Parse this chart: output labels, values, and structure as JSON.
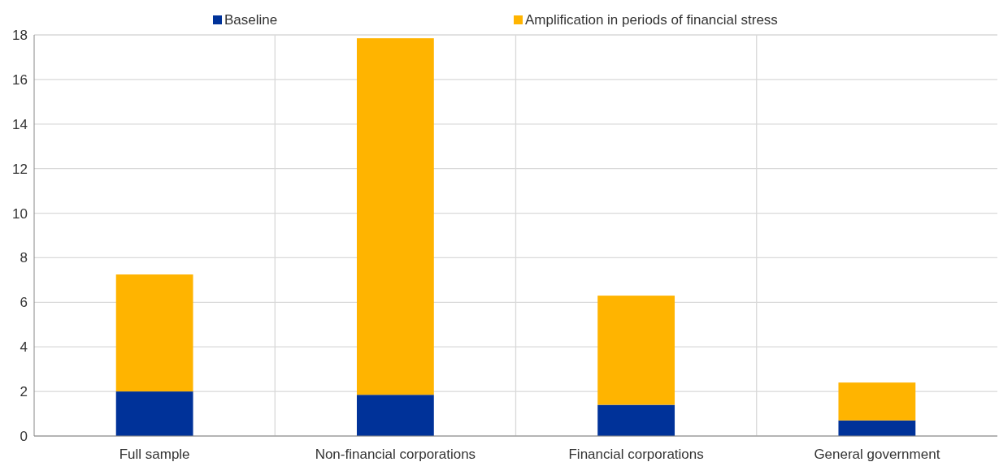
{
  "chart_data": {
    "type": "bar",
    "stacked": true,
    "categories": [
      "Full sample",
      "Non-financial corporations",
      "Financial corporations",
      "General government"
    ],
    "series": [
      {
        "name": "Baseline",
        "color": "#003299",
        "values": [
          2.0,
          1.85,
          1.4,
          0.7
        ]
      },
      {
        "name": "Amplification in periods of financial stress",
        "color": "#ffb400",
        "values": [
          5.25,
          16.0,
          4.9,
          1.7
        ]
      }
    ],
    "ylim": [
      0,
      18
    ],
    "yticks": [
      0,
      2,
      4,
      6,
      8,
      10,
      12,
      14,
      16,
      18
    ],
    "grid": true,
    "legend": "top"
  }
}
